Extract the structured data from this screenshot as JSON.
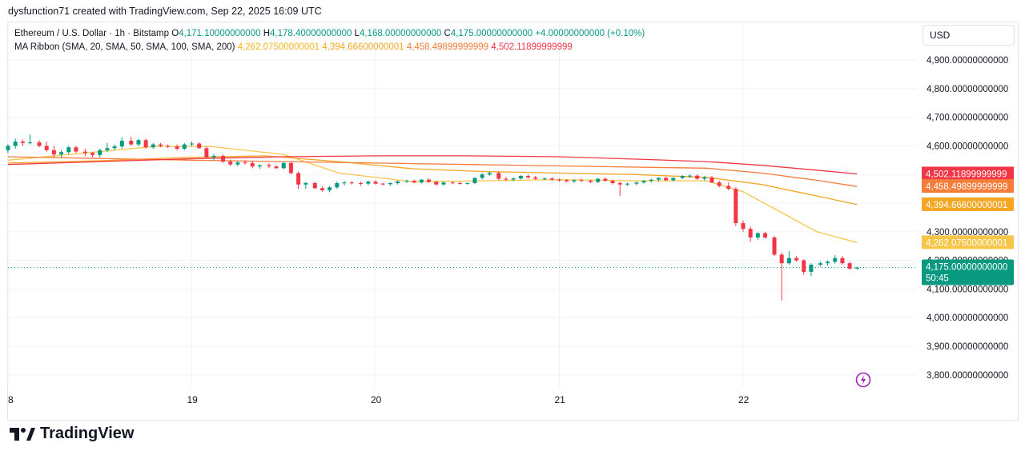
{
  "header": {
    "attribution": "dysfunction71 created with TradingView.com, Sep 22, 2025 16:09 UTC"
  },
  "legend": {
    "symbol": "Ethereum / U.S. Dollar · 1h · Bitstamp",
    "o_label": "O",
    "o_value": "4,171.10000000000",
    "h_label": "H",
    "h_value": "4,178.40000000000",
    "l_label": "L",
    "l_value": "4,168.00000000000",
    "c_label": "C",
    "c_value": "4,175.00000000000",
    "change": "+4.00000000000 (+0.10%)",
    "ma_label": "MA Ribbon (SMA, 20, SMA, 50, SMA, 100, SMA, 200)",
    "ma_values": [
      "4,262.07500000001",
      "4,394.66600000001",
      "4,458.49899999999",
      "4,502.11899999999"
    ]
  },
  "currency": "USD",
  "price_tag": {
    "price": "4,175.00000000000",
    "countdown": "50:45",
    "color": "#089981"
  },
  "brand": "TradingView",
  "colors": {
    "up": "#089981",
    "down": "#f23645",
    "grid": "#f0f3fa",
    "ma20": "#f7c548",
    "ma50": "#f5a623",
    "ma100": "#f57c3a",
    "ma200": "#f23645"
  },
  "chart_data": {
    "type": "candlestick",
    "title": "Ethereum / U.S. Dollar · 1h · Bitstamp",
    "x_ticks": [
      "8",
      "19",
      "20",
      "21",
      "22"
    ],
    "y_ticks": [
      "4,900.00000000000",
      "4,800.00000000000",
      "4,700.00000000000",
      "4,600.00000000000",
      "4,500.00000000000",
      "4,400.00000000000",
      "4,300.00000000000",
      "4,200.00000000000",
      "4,100.00000000000",
      "4,000.00000000000",
      "3,900.00000000000",
      "3,800.00000000000"
    ],
    "y_range": [
      3750,
      5000
    ],
    "x_range": [
      18.0,
      23.0
    ],
    "grid": true,
    "candles": [
      {
        "t": 18.0,
        "o": 4585,
        "h": 4605,
        "l": 4575,
        "c": 4600
      },
      {
        "t": 18.04,
        "o": 4600,
        "h": 4625,
        "l": 4590,
        "c": 4615
      },
      {
        "t": 18.08,
        "o": 4615,
        "h": 4622,
        "l": 4600,
        "c": 4610
      },
      {
        "t": 18.12,
        "o": 4610,
        "h": 4640,
        "l": 4605,
        "c": 4612
      },
      {
        "t": 18.17,
        "o": 4612,
        "h": 4620,
        "l": 4595,
        "c": 4600
      },
      {
        "t": 18.21,
        "o": 4600,
        "h": 4615,
        "l": 4580,
        "c": 4585
      },
      {
        "t": 18.25,
        "o": 4585,
        "h": 4600,
        "l": 4560,
        "c": 4570
      },
      {
        "t": 18.29,
        "o": 4570,
        "h": 4585,
        "l": 4560,
        "c": 4578
      },
      {
        "t": 18.33,
        "o": 4578,
        "h": 4600,
        "l": 4570,
        "c": 4595
      },
      {
        "t": 18.37,
        "o": 4595,
        "h": 4600,
        "l": 4575,
        "c": 4580
      },
      {
        "t": 18.42,
        "o": 4580,
        "h": 4590,
        "l": 4565,
        "c": 4575
      },
      {
        "t": 18.46,
        "o": 4575,
        "h": 4580,
        "l": 4560,
        "c": 4568
      },
      {
        "t": 18.5,
        "o": 4568,
        "h": 4590,
        "l": 4560,
        "c": 4585
      },
      {
        "t": 18.54,
        "o": 4585,
        "h": 4610,
        "l": 4578,
        "c": 4592
      },
      {
        "t": 18.58,
        "o": 4592,
        "h": 4605,
        "l": 4585,
        "c": 4598
      },
      {
        "t": 18.62,
        "o": 4598,
        "h": 4630,
        "l": 4590,
        "c": 4618
      },
      {
        "t": 18.67,
        "o": 4618,
        "h": 4632,
        "l": 4600,
        "c": 4605
      },
      {
        "t": 18.71,
        "o": 4605,
        "h": 4625,
        "l": 4598,
        "c": 4620
      },
      {
        "t": 18.75,
        "o": 4620,
        "h": 4625,
        "l": 4590,
        "c": 4595
      },
      {
        "t": 18.79,
        "o": 4595,
        "h": 4610,
        "l": 4590,
        "c": 4605
      },
      {
        "t": 18.83,
        "o": 4605,
        "h": 4610,
        "l": 4595,
        "c": 4600
      },
      {
        "t": 18.87,
        "o": 4600,
        "h": 4605,
        "l": 4592,
        "c": 4598
      },
      {
        "t": 18.92,
        "o": 4598,
        "h": 4605,
        "l": 4585,
        "c": 4590
      },
      {
        "t": 18.96,
        "o": 4590,
        "h": 4610,
        "l": 4585,
        "c": 4605
      },
      {
        "t": 19.0,
        "o": 4605,
        "h": 4615,
        "l": 4598,
        "c": 4608
      },
      {
        "t": 19.04,
        "o": 4608,
        "h": 4612,
        "l": 4590,
        "c": 4592
      },
      {
        "t": 19.08,
        "o": 4592,
        "h": 4598,
        "l": 4555,
        "c": 4560
      },
      {
        "t": 19.12,
        "o": 4560,
        "h": 4572,
        "l": 4550,
        "c": 4565
      },
      {
        "t": 19.17,
        "o": 4565,
        "h": 4570,
        "l": 4540,
        "c": 4545
      },
      {
        "t": 19.21,
        "o": 4545,
        "h": 4552,
        "l": 4530,
        "c": 4535
      },
      {
        "t": 19.25,
        "o": 4535,
        "h": 4548,
        "l": 4528,
        "c": 4542
      },
      {
        "t": 19.29,
        "o": 4542,
        "h": 4550,
        "l": 4535,
        "c": 4540
      },
      {
        "t": 19.33,
        "o": 4540,
        "h": 4548,
        "l": 4522,
        "c": 4528
      },
      {
        "t": 19.37,
        "o": 4528,
        "h": 4535,
        "l": 4520,
        "c": 4532
      },
      {
        "t": 19.42,
        "o": 4532,
        "h": 4540,
        "l": 4522,
        "c": 4528
      },
      {
        "t": 19.46,
        "o": 4528,
        "h": 4532,
        "l": 4520,
        "c": 4522
      },
      {
        "t": 19.5,
        "o": 4522,
        "h": 4545,
        "l": 4518,
        "c": 4540
      },
      {
        "t": 19.54,
        "o": 4540,
        "h": 4545,
        "l": 4500,
        "c": 4505
      },
      {
        "t": 19.58,
        "o": 4505,
        "h": 4510,
        "l": 4450,
        "c": 4465
      },
      {
        "t": 19.62,
        "o": 4465,
        "h": 4475,
        "l": 4450,
        "c": 4470
      },
      {
        "t": 19.67,
        "o": 4470,
        "h": 4475,
        "l": 4450,
        "c": 4452
      },
      {
        "t": 19.71,
        "o": 4452,
        "h": 4458,
        "l": 4440,
        "c": 4445
      },
      {
        "t": 19.75,
        "o": 4445,
        "h": 4460,
        "l": 4438,
        "c": 4455
      },
      {
        "t": 19.79,
        "o": 4455,
        "h": 4475,
        "l": 4450,
        "c": 4470
      },
      {
        "t": 19.83,
        "o": 4470,
        "h": 4478,
        "l": 4462,
        "c": 4472
      },
      {
        "t": 19.87,
        "o": 4472,
        "h": 4476,
        "l": 4465,
        "c": 4470
      },
      {
        "t": 19.92,
        "o": 4470,
        "h": 4475,
        "l": 4460,
        "c": 4468
      },
      {
        "t": 19.96,
        "o": 4468,
        "h": 4478,
        "l": 4462,
        "c": 4475
      },
      {
        "t": 20.0,
        "o": 4475,
        "h": 4480,
        "l": 4465,
        "c": 4468
      },
      {
        "t": 20.04,
        "o": 4468,
        "h": 4472,
        "l": 4462,
        "c": 4466
      },
      {
        "t": 20.08,
        "o": 4466,
        "h": 4472,
        "l": 4460,
        "c": 4470
      },
      {
        "t": 20.12,
        "o": 4470,
        "h": 4478,
        "l": 4465,
        "c": 4476
      },
      {
        "t": 20.17,
        "o": 4476,
        "h": 4482,
        "l": 4470,
        "c": 4478
      },
      {
        "t": 20.21,
        "o": 4478,
        "h": 4482,
        "l": 4470,
        "c": 4472
      },
      {
        "t": 20.25,
        "o": 4472,
        "h": 4484,
        "l": 4468,
        "c": 4482
      },
      {
        "t": 20.29,
        "o": 4482,
        "h": 4486,
        "l": 4470,
        "c": 4474
      },
      {
        "t": 20.33,
        "o": 4474,
        "h": 4478,
        "l": 4462,
        "c": 4465
      },
      {
        "t": 20.37,
        "o": 4465,
        "h": 4475,
        "l": 4462,
        "c": 4472
      },
      {
        "t": 20.42,
        "o": 4472,
        "h": 4476,
        "l": 4466,
        "c": 4470
      },
      {
        "t": 20.46,
        "o": 4470,
        "h": 4474,
        "l": 4465,
        "c": 4468
      },
      {
        "t": 20.5,
        "o": 4468,
        "h": 4472,
        "l": 4464,
        "c": 4470
      },
      {
        "t": 20.54,
        "o": 4470,
        "h": 4490,
        "l": 4466,
        "c": 4488
      },
      {
        "t": 20.58,
        "o": 4488,
        "h": 4505,
        "l": 4482,
        "c": 4500
      },
      {
        "t": 20.62,
        "o": 4500,
        "h": 4510,
        "l": 4495,
        "c": 4505
      },
      {
        "t": 20.67,
        "o": 4505,
        "h": 4510,
        "l": 4480,
        "c": 4485
      },
      {
        "t": 20.71,
        "o": 4485,
        "h": 4492,
        "l": 4478,
        "c": 4482
      },
      {
        "t": 20.75,
        "o": 4482,
        "h": 4490,
        "l": 4476,
        "c": 4486
      },
      {
        "t": 20.79,
        "o": 4486,
        "h": 4498,
        "l": 4482,
        "c": 4495
      },
      {
        "t": 20.83,
        "o": 4495,
        "h": 4500,
        "l": 4485,
        "c": 4490
      },
      {
        "t": 20.87,
        "o": 4490,
        "h": 4495,
        "l": 4482,
        "c": 4485
      },
      {
        "t": 20.92,
        "o": 4485,
        "h": 4490,
        "l": 4480,
        "c": 4486
      },
      {
        "t": 20.96,
        "o": 4486,
        "h": 4490,
        "l": 4478,
        "c": 4482
      },
      {
        "t": 21.0,
        "o": 4482,
        "h": 4486,
        "l": 4475,
        "c": 4480
      },
      {
        "t": 21.04,
        "o": 4480,
        "h": 4484,
        "l": 4472,
        "c": 4476
      },
      {
        "t": 21.08,
        "o": 4476,
        "h": 4482,
        "l": 4470,
        "c": 4480
      },
      {
        "t": 21.12,
        "o": 4480,
        "h": 4486,
        "l": 4474,
        "c": 4478
      },
      {
        "t": 21.17,
        "o": 4478,
        "h": 4482,
        "l": 4470,
        "c": 4474
      },
      {
        "t": 21.21,
        "o": 4474,
        "h": 4488,
        "l": 4470,
        "c": 4485
      },
      {
        "t": 21.25,
        "o": 4485,
        "h": 4490,
        "l": 4475,
        "c": 4478
      },
      {
        "t": 21.29,
        "o": 4478,
        "h": 4482,
        "l": 4465,
        "c": 4470
      },
      {
        "t": 21.33,
        "o": 4470,
        "h": 4475,
        "l": 4425,
        "c": 4465
      },
      {
        "t": 21.37,
        "o": 4465,
        "h": 4472,
        "l": 4460,
        "c": 4468
      },
      {
        "t": 21.42,
        "o": 4468,
        "h": 4475,
        "l": 4462,
        "c": 4472
      },
      {
        "t": 21.46,
        "o": 4472,
        "h": 4480,
        "l": 4468,
        "c": 4478
      },
      {
        "t": 21.5,
        "o": 4478,
        "h": 4485,
        "l": 4472,
        "c": 4482
      },
      {
        "t": 21.54,
        "o": 4482,
        "h": 4490,
        "l": 4475,
        "c": 4488
      },
      {
        "t": 21.58,
        "o": 4488,
        "h": 4492,
        "l": 4478,
        "c": 4480
      },
      {
        "t": 21.62,
        "o": 4480,
        "h": 4490,
        "l": 4476,
        "c": 4488
      },
      {
        "t": 21.67,
        "o": 4488,
        "h": 4498,
        "l": 4484,
        "c": 4495
      },
      {
        "t": 21.71,
        "o": 4495,
        "h": 4500,
        "l": 4488,
        "c": 4496
      },
      {
        "t": 21.75,
        "o": 4496,
        "h": 4500,
        "l": 4482,
        "c": 4485
      },
      {
        "t": 21.79,
        "o": 4485,
        "h": 4495,
        "l": 4478,
        "c": 4490
      },
      {
        "t": 21.83,
        "o": 4490,
        "h": 4495,
        "l": 4470,
        "c": 4472
      },
      {
        "t": 21.87,
        "o": 4472,
        "h": 4478,
        "l": 4455,
        "c": 4460
      },
      {
        "t": 21.92,
        "o": 4460,
        "h": 4472,
        "l": 4445,
        "c": 4450
      },
      {
        "t": 21.96,
        "o": 4450,
        "h": 4455,
        "l": 4320,
        "c": 4330
      },
      {
        "t": 22.0,
        "o": 4330,
        "h": 4340,
        "l": 4300,
        "c": 4310
      },
      {
        "t": 22.04,
        "o": 4310,
        "h": 4318,
        "l": 4265,
        "c": 4280
      },
      {
        "t": 22.08,
        "o": 4280,
        "h": 4298,
        "l": 4272,
        "c": 4295
      },
      {
        "t": 22.12,
        "o": 4295,
        "h": 4300,
        "l": 4275,
        "c": 4280
      },
      {
        "t": 22.17,
        "o": 4280,
        "h": 4285,
        "l": 4215,
        "c": 4220
      },
      {
        "t": 22.21,
        "o": 4220,
        "h": 4228,
        "l": 4060,
        "c": 4190
      },
      {
        "t": 22.25,
        "o": 4190,
        "h": 4232,
        "l": 4185,
        "c": 4208
      },
      {
        "t": 22.29,
        "o": 4208,
        "h": 4215,
        "l": 4195,
        "c": 4200
      },
      {
        "t": 22.33,
        "o": 4200,
        "h": 4204,
        "l": 4150,
        "c": 4160
      },
      {
        "t": 22.37,
        "o": 4160,
        "h": 4190,
        "l": 4145,
        "c": 4185
      },
      {
        "t": 22.42,
        "o": 4185,
        "h": 4195,
        "l": 4178,
        "c": 4190
      },
      {
        "t": 22.46,
        "o": 4190,
        "h": 4200,
        "l": 4182,
        "c": 4195
      },
      {
        "t": 22.5,
        "o": 4195,
        "h": 4218,
        "l": 4188,
        "c": 4208
      },
      {
        "t": 22.54,
        "o": 4208,
        "h": 4215,
        "l": 4185,
        "c": 4190
      },
      {
        "t": 22.58,
        "o": 4190,
        "h": 4195,
        "l": 4168,
        "c": 4171
      },
      {
        "t": 22.62,
        "o": 4171,
        "h": 4178,
        "l": 4168,
        "c": 4175
      }
    ],
    "ma": [
      {
        "name": "SMA 20",
        "color": "#f7c548",
        "points": [
          [
            18.0,
            4550
          ],
          [
            18.5,
            4580
          ],
          [
            18.8,
            4598
          ],
          [
            19.1,
            4598
          ],
          [
            19.5,
            4570
          ],
          [
            19.8,
            4505
          ],
          [
            20.2,
            4475
          ],
          [
            20.6,
            4478
          ],
          [
            21.0,
            4482
          ],
          [
            21.4,
            4478
          ],
          [
            21.8,
            4478
          ],
          [
            22.0,
            4440
          ],
          [
            22.2,
            4370
          ],
          [
            22.4,
            4300
          ],
          [
            22.62,
            4262
          ]
        ]
      },
      {
        "name": "SMA 50",
        "color": "#f5a623",
        "points": [
          [
            18.0,
            4540
          ],
          [
            18.5,
            4548
          ],
          [
            19.0,
            4560
          ],
          [
            19.4,
            4565
          ],
          [
            19.8,
            4545
          ],
          [
            20.2,
            4520
          ],
          [
            20.6,
            4510
          ],
          [
            21.0,
            4505
          ],
          [
            21.4,
            4500
          ],
          [
            21.8,
            4490
          ],
          [
            22.1,
            4465
          ],
          [
            22.4,
            4425
          ],
          [
            22.62,
            4395
          ]
        ]
      },
      {
        "name": "SMA 100",
        "color": "#f57c3a",
        "points": [
          [
            18.0,
            4562
          ],
          [
            18.5,
            4556
          ],
          [
            19.0,
            4550
          ],
          [
            19.5,
            4545
          ],
          [
            20.0,
            4540
          ],
          [
            20.5,
            4535
          ],
          [
            21.0,
            4530
          ],
          [
            21.5,
            4525
          ],
          [
            21.8,
            4522
          ],
          [
            22.1,
            4505
          ],
          [
            22.4,
            4480
          ],
          [
            22.62,
            4458
          ]
        ]
      },
      {
        "name": "SMA 200",
        "color": "#f23645",
        "points": [
          [
            18.0,
            4535
          ],
          [
            18.5,
            4545
          ],
          [
            19.0,
            4555
          ],
          [
            19.5,
            4562
          ],
          [
            20.0,
            4565
          ],
          [
            20.5,
            4565
          ],
          [
            21.0,
            4562
          ],
          [
            21.5,
            4552
          ],
          [
            21.8,
            4545
          ],
          [
            22.1,
            4532
          ],
          [
            22.4,
            4515
          ],
          [
            22.62,
            4502
          ]
        ]
      }
    ],
    "last_price": 4175
  }
}
